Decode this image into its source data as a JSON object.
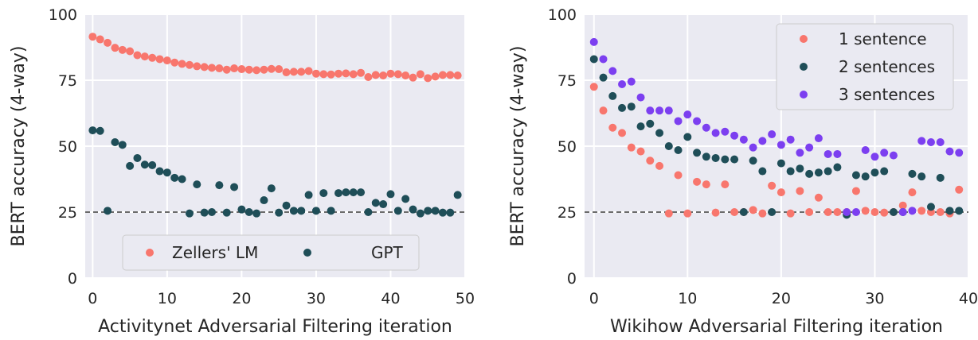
{
  "chart_data": [
    {
      "type": "scatter",
      "title": "",
      "xlabel": "Activitynet Adversarial Filtering iteration",
      "ylabel": "BERT accuracy (4-way)",
      "xlim": [
        -1,
        50
      ],
      "ylim": [
        0,
        100
      ],
      "xticks": [
        0,
        10,
        20,
        30,
        40,
        50
      ],
      "yticks": [
        0,
        25,
        50,
        75,
        100
      ],
      "grid": true,
      "reference_line": 25,
      "legend": {
        "placement": "lower-center",
        "columns": 2
      },
      "series": [
        {
          "name": "Zellers' LM",
          "color": "#f8766d",
          "x": [
            0,
            1,
            2,
            3,
            4,
            5,
            6,
            7,
            8,
            9,
            10,
            11,
            12,
            13,
            14,
            15,
            16,
            17,
            18,
            19,
            20,
            21,
            22,
            23,
            24,
            25,
            26,
            27,
            28,
            29,
            30,
            31,
            32,
            33,
            34,
            35,
            36,
            37,
            38,
            39,
            40,
            41,
            42,
            43,
            44,
            45,
            46,
            47,
            48,
            49
          ],
          "y": [
            91.5,
            90.5,
            89.2,
            87.3,
            86.5,
            86,
            84.5,
            84,
            83.5,
            83,
            82.5,
            81.7,
            81.2,
            80.8,
            80.3,
            80,
            79.7,
            79.5,
            79,
            79.5,
            79.2,
            79,
            78.8,
            79,
            79.3,
            79.2,
            78,
            78.2,
            78.2,
            78.5,
            77.5,
            77.3,
            77.2,
            77.5,
            77.6,
            77.3,
            77.8,
            76.2,
            77,
            76.8,
            77.5,
            77.3,
            76.8,
            76,
            77.3,
            75.8,
            76.4,
            77,
            77,
            76.8
          ]
        },
        {
          "name": "GPT",
          "color": "#1f4e58",
          "x": [
            0,
            1,
            2,
            3,
            4,
            5,
            6,
            7,
            8,
            9,
            10,
            11,
            12,
            13,
            14,
            15,
            16,
            17,
            18,
            19,
            20,
            21,
            22,
            23,
            24,
            25,
            26,
            27,
            28,
            29,
            30,
            31,
            32,
            33,
            34,
            35,
            36,
            37,
            38,
            39,
            40,
            41,
            42,
            43,
            44,
            45,
            46,
            47,
            48,
            49
          ],
          "y": [
            56,
            55.8,
            25.5,
            51.5,
            50.5,
            42.5,
            45.5,
            43,
            42.8,
            40.5,
            40,
            38,
            37.5,
            24.5,
            35.5,
            24.8,
            25,
            35.2,
            24.8,
            34.5,
            26,
            25,
            24.5,
            29.5,
            34,
            24.8,
            27.5,
            25.5,
            25.5,
            31.5,
            25.5,
            32.2,
            25.5,
            32.2,
            32.5,
            32.5,
            32.5,
            25,
            28.5,
            28,
            31.8,
            25.5,
            30,
            26,
            24.5,
            25.5,
            25.5,
            24.8,
            24.8,
            31.5
          ]
        }
      ]
    },
    {
      "type": "scatter",
      "title": "",
      "xlabel": "Wikihow Adversarial Filtering iteration",
      "ylabel": "BERT accuracy (4-way)",
      "xlim": [
        -1,
        40
      ],
      "ylim": [
        0,
        100
      ],
      "xticks": [
        0,
        10,
        20,
        30,
        40
      ],
      "yticks": [
        0,
        25,
        50,
        75,
        100
      ],
      "grid": true,
      "reference_line": 25,
      "legend": {
        "placement": "upper-right",
        "columns": 1
      },
      "series": [
        {
          "name": "1 sentence",
          "color": "#f8766d",
          "x": [
            0,
            1,
            2,
            3,
            4,
            5,
            6,
            7,
            8,
            9,
            10,
            11,
            12,
            13,
            14,
            15,
            16,
            17,
            18,
            19,
            20,
            21,
            22,
            23,
            24,
            25,
            26,
            27,
            28,
            29,
            30,
            31,
            32,
            33,
            34,
            35,
            36,
            37,
            38,
            39
          ],
          "y": [
            72.5,
            63.5,
            57,
            55,
            49.5,
            48,
            44.5,
            42.5,
            24.5,
            39,
            24.5,
            36.5,
            35.5,
            24.8,
            35.5,
            25,
            25,
            25.8,
            24.5,
            35,
            32.5,
            24.5,
            33,
            25,
            30.5,
            25,
            25,
            25,
            33,
            25.5,
            25,
            24.8,
            25,
            27.5,
            32.5,
            25.5,
            25,
            25,
            24.5,
            33.5
          ]
        },
        {
          "name": "2 sentences",
          "color": "#1f4e58",
          "x": [
            0,
            1,
            2,
            3,
            4,
            5,
            6,
            7,
            8,
            9,
            10,
            11,
            12,
            13,
            14,
            15,
            16,
            17,
            18,
            19,
            20,
            21,
            22,
            23,
            24,
            25,
            26,
            27,
            28,
            29,
            30,
            31,
            32,
            33,
            34,
            35,
            36,
            37,
            38,
            39
          ],
          "y": [
            83,
            76,
            69,
            64.5,
            65,
            57.5,
            58.5,
            55,
            50,
            48.5,
            53.5,
            47.5,
            46,
            45.5,
            45,
            45,
            25,
            44.5,
            40.5,
            25,
            43.5,
            40.5,
            41.5,
            39.5,
            40,
            40.5,
            42,
            24,
            39,
            38.5,
            40,
            40.5,
            25,
            25,
            39.5,
            38.5,
            27,
            38,
            25.5,
            25.5
          ]
        },
        {
          "name": "3 sentences",
          "color": "#7c3ff0",
          "x": [
            0,
            1,
            2,
            3,
            4,
            5,
            6,
            7,
            8,
            9,
            10,
            11,
            12,
            13,
            14,
            15,
            16,
            17,
            18,
            19,
            20,
            21,
            22,
            23,
            24,
            25,
            26,
            27,
            28,
            29,
            30,
            31,
            32,
            33,
            34,
            35,
            36,
            37,
            38,
            39
          ],
          "y": [
            89.5,
            83,
            78.5,
            73.5,
            74.5,
            68.5,
            63.5,
            63.5,
            63.5,
            59.5,
            62,
            59.5,
            57,
            55,
            55.5,
            54,
            52.5,
            49.5,
            52,
            54.5,
            50.5,
            52.5,
            47.5,
            49.5,
            53,
            47,
            47,
            25,
            25,
            48.5,
            46,
            47.5,
            46.5,
            25,
            25.5,
            52,
            51.5,
            51.5,
            48,
            47.5
          ]
        }
      ]
    }
  ]
}
